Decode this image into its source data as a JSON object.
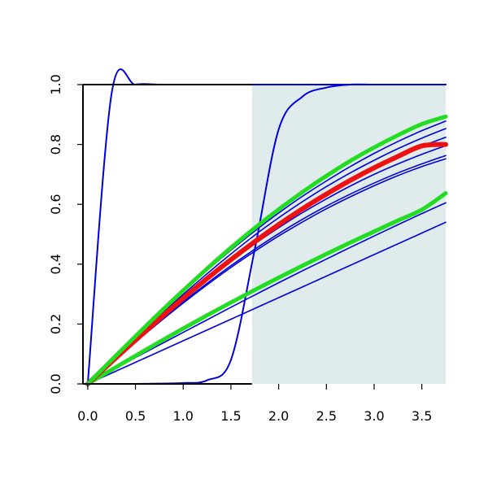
{
  "chart_data": {
    "type": "line",
    "title": "",
    "xlabel": "",
    "ylabel": "",
    "xlim": [
      -0.05,
      3.75
    ],
    "ylim": [
      0,
      1
    ],
    "grid": false,
    "legend": "none",
    "x_ticks": [
      "0.0",
      "0.5",
      "1.0",
      "1.5",
      "2.0",
      "2.5",
      "3.0",
      "3.5"
    ],
    "x_tick_values": [
      0,
      0.5,
      1,
      1.5,
      2,
      2.5,
      3,
      3.5
    ],
    "y_ticks": [
      "0.0",
      "0.2",
      "0.4",
      "0.6",
      "0.8",
      "1.0"
    ],
    "y_tick_values": [
      0,
      0.2,
      0.4,
      0.6,
      0.8,
      1.0
    ],
    "shaded_region": {
      "x_from": 1.72,
      "x_to": 3.75,
      "color": "#e0ecec"
    },
    "colors": {
      "blue": "#0000dd",
      "red": "#ee1111",
      "green": "#22dd22",
      "axis": "#000000"
    },
    "x": [
      0,
      0.25,
      0.5,
      0.75,
      1.0,
      1.25,
      1.5,
      1.75,
      2.0,
      2.25,
      2.5,
      2.75,
      3.0,
      3.25,
      3.5,
      3.75
    ],
    "series": [
      {
        "color": "blue",
        "width": 2,
        "values": [
          0.0,
          0.97,
          1.0,
          1.0,
          1.0,
          1.0,
          1.0,
          1.0,
          1.0,
          1.0,
          1.0,
          1.0,
          1.0,
          1.0,
          1.0,
          1.0
        ]
      },
      {
        "color": "blue",
        "width": 2,
        "values": [
          0.0,
          0.0,
          0.0,
          0.001,
          0.003,
          0.012,
          0.08,
          0.45,
          0.85,
          0.96,
          0.99,
          1.0,
          1.0,
          1.0,
          1.0,
          1.0
        ]
      },
      {
        "color": "blue",
        "width": 1.6,
        "values": [
          0.0,
          0.036,
          0.072,
          0.108,
          0.144,
          0.18,
          0.216,
          0.252,
          0.288,
          0.324,
          0.36,
          0.396,
          0.432,
          0.468,
          0.504,
          0.54
        ]
      },
      {
        "color": "blue",
        "width": 1.6,
        "values": [
          0.0,
          0.044,
          0.088,
          0.13,
          0.172,
          0.214,
          0.256,
          0.297,
          0.338,
          0.378,
          0.417,
          0.456,
          0.494,
          0.532,
          0.569,
          0.605
        ]
      },
      {
        "color": "blue",
        "width": 1.6,
        "values": [
          0.0,
          0.07,
          0.139,
          0.206,
          0.27,
          0.331,
          0.389,
          0.443,
          0.494,
          0.541,
          0.585,
          0.625,
          0.662,
          0.696,
          0.726,
          0.752
        ]
      },
      {
        "color": "blue",
        "width": 1.6,
        "values": [
          0.0,
          0.071,
          0.141,
          0.209,
          0.274,
          0.336,
          0.395,
          0.45,
          0.502,
          0.55,
          0.594,
          0.634,
          0.671,
          0.705,
          0.735,
          0.763
        ]
      },
      {
        "color": "blue",
        "width": 1.6,
        "values": [
          0.0,
          0.073,
          0.145,
          0.215,
          0.283,
          0.348,
          0.41,
          0.468,
          0.522,
          0.572,
          0.618,
          0.661,
          0.7,
          0.735,
          0.767,
          0.796
        ]
      },
      {
        "color": "blue",
        "width": 1.6,
        "values": [
          0.0,
          0.075,
          0.149,
          0.221,
          0.291,
          0.358,
          0.422,
          0.482,
          0.538,
          0.59,
          0.638,
          0.682,
          0.723,
          0.76,
          0.794,
          0.824
        ]
      },
      {
        "color": "blue",
        "width": 1.6,
        "values": [
          0.0,
          0.077,
          0.153,
          0.227,
          0.299,
          0.368,
          0.434,
          0.497,
          0.555,
          0.609,
          0.659,
          0.705,
          0.747,
          0.786,
          0.821,
          0.853
        ]
      },
      {
        "color": "blue",
        "width": 1.6,
        "values": [
          0.0,
          0.079,
          0.157,
          0.233,
          0.307,
          0.379,
          0.447,
          0.511,
          0.571,
          0.627,
          0.678,
          0.726,
          0.77,
          0.81,
          0.846,
          0.878
        ]
      },
      {
        "color": "green",
        "width": 5,
        "values": [
          0.0,
          0.047,
          0.094,
          0.14,
          0.185,
          0.229,
          0.272,
          0.314,
          0.355,
          0.395,
          0.434,
          0.472,
          0.509,
          0.546,
          0.582,
          0.637
        ]
      },
      {
        "color": "red",
        "width": 6,
        "values": [
          0.0,
          0.074,
          0.146,
          0.217,
          0.286,
          0.352,
          0.415,
          0.475,
          0.532,
          0.585,
          0.634,
          0.68,
          0.722,
          0.76,
          0.795,
          0.8
        ]
      },
      {
        "color": "green",
        "width": 5,
        "values": [
          0.0,
          0.08,
          0.159,
          0.237,
          0.312,
          0.385,
          0.455,
          0.521,
          0.583,
          0.641,
          0.695,
          0.745,
          0.79,
          0.831,
          0.868,
          0.893
        ]
      }
    ]
  }
}
